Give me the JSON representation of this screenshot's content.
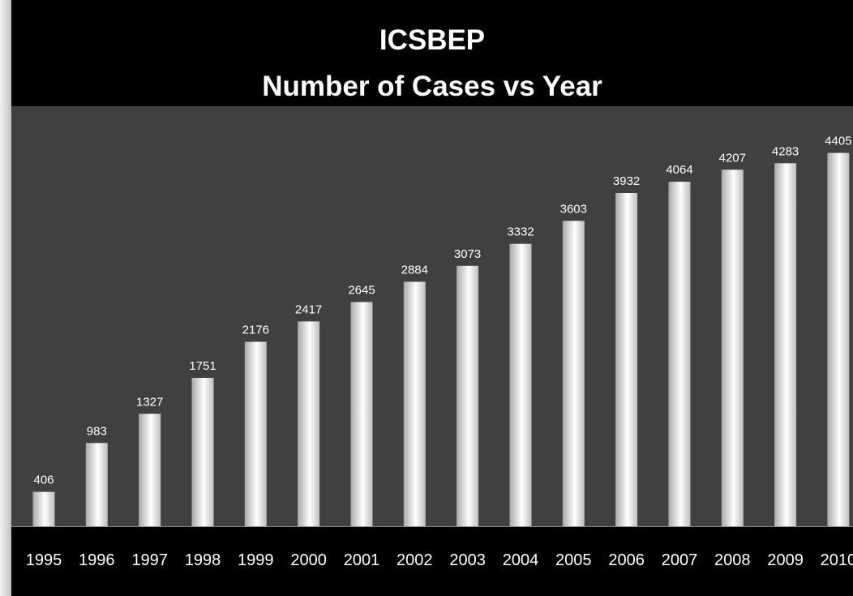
{
  "chart_data": {
    "type": "bar",
    "title": [
      "ICSBEP",
      "Number of Cases vs Year"
    ],
    "xlabel": "",
    "ylabel": "",
    "categories": [
      "1995",
      "1996",
      "1997",
      "1998",
      "1999",
      "2000",
      "2001",
      "2002",
      "2003",
      "2004",
      "2005",
      "2006",
      "2007",
      "2008",
      "2009",
      "2010"
    ],
    "values": [
      406,
      983,
      1327,
      1751,
      2176,
      2417,
      2645,
      2884,
      3073,
      3332,
      3603,
      3932,
      4064,
      4207,
      4283,
      4405
    ],
    "ylim": [
      0,
      4860
    ],
    "grid": false,
    "legend": "none",
    "data_labels": true,
    "colors": {
      "page_background": "#000000",
      "plot_background": "#404040",
      "bar_center": "#ffffff",
      "bar_edge": "#a9a9a9",
      "text": "#ffffff"
    }
  }
}
